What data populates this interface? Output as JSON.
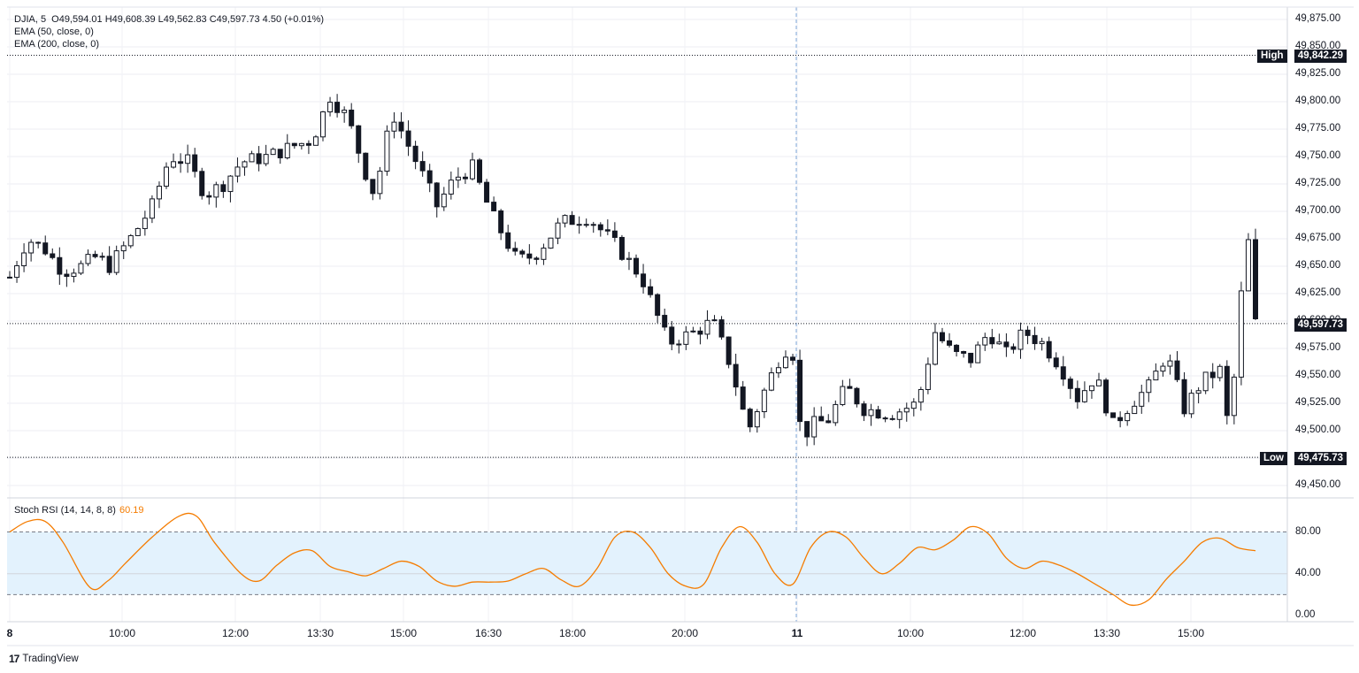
{
  "legend": {
    "symbol": "DJIA, 5",
    "ohlc": "O49,594.01 H49,608.39 L49,562.83 C49,597.73 4.50 (+0.01%)",
    "ema50": "EMA (50, close, 0)",
    "ema200": "EMA (200, close, 0)"
  },
  "price_axis": {
    "ticks": [
      "49,875.00",
      "49,850.00",
      "49,825.00",
      "49,800.00",
      "49,775.00",
      "49,750.00",
      "49,725.00",
      "49,700.00",
      "49,675.00",
      "49,650.00",
      "49,625.00",
      "49,600.00",
      "49,575.00",
      "49,550.00",
      "49,525.00",
      "49,500.00",
      "49,475.00",
      "49,450.00"
    ],
    "high_label": "High",
    "high_value": "49,842.29",
    "low_label": "Low",
    "low_value": "49,475.73",
    "last_value": "49,597.73"
  },
  "time_axis": {
    "labels": [
      {
        "t": "8",
        "bold": true
      },
      {
        "t": "10:00",
        "bold": false
      },
      {
        "t": "12:00",
        "bold": false
      },
      {
        "t": "13:30",
        "bold": false
      },
      {
        "t": "15:00",
        "bold": false
      },
      {
        "t": "16:30",
        "bold": false
      },
      {
        "t": "18:00",
        "bold": false
      },
      {
        "t": "20:00",
        "bold": false
      },
      {
        "t": "11",
        "bold": true
      },
      {
        "t": "10:00",
        "bold": false
      },
      {
        "t": "12:00",
        "bold": false
      },
      {
        "t": "13:30",
        "bold": false
      },
      {
        "t": "15:00",
        "bold": false
      }
    ]
  },
  "stoch_rsi": {
    "label": "Stoch RSI (14, 14, 8, 8)",
    "value": "60.19",
    "ticks": [
      "80.00",
      "40.00",
      "0.00"
    ],
    "line_color": "#f57c00",
    "band_color": "#e3f2fd"
  },
  "brand": "TradingView",
  "colors": {
    "candle": "#131722",
    "grid": "#e0e3eb",
    "stoch": "#f57c00"
  },
  "chart_data": {
    "type": "candlestick",
    "symbol": "DJIA",
    "interval": "5",
    "ylim": [
      49440,
      49885
    ],
    "high": 49842.29,
    "low": 49475.73,
    "last": 49597.73,
    "keypoints": [
      [
        0,
        49640
      ],
      [
        10,
        49675
      ],
      [
        20,
        49665
      ],
      [
        30,
        49645
      ],
      [
        40,
        49650
      ],
      [
        50,
        49660
      ],
      [
        55,
        49648
      ],
      [
        70,
        49680
      ],
      [
        80,
        49705
      ],
      [
        90,
        49750
      ],
      [
        100,
        49745
      ],
      [
        110,
        49715
      ],
      [
        120,
        49725
      ],
      [
        130,
        49745
      ],
      [
        145,
        49750
      ],
      [
        160,
        49760
      ],
      [
        170,
        49765
      ],
      [
        180,
        49805
      ],
      [
        190,
        49785
      ],
      [
        200,
        49735
      ],
      [
        205,
        49715
      ],
      [
        215,
        49790
      ],
      [
        230,
        49740
      ],
      [
        240,
        49705
      ],
      [
        250,
        49730
      ],
      [
        260,
        49740
      ],
      [
        270,
        49700
      ],
      [
        285,
        49655
      ],
      [
        295,
        49660
      ],
      [
        310,
        49690
      ],
      [
        325,
        49695
      ],
      [
        340,
        49670
      ],
      [
        355,
        49640
      ],
      [
        370,
        49580
      ],
      [
        385,
        49590
      ],
      [
        395,
        49600
      ],
      [
        405,
        49560
      ],
      [
        415,
        49500
      ],
      [
        425,
        49540
      ],
      [
        435,
        49575
      ],
      [
        440,
        49570
      ],
      [
        445,
        49490
      ],
      [
        450,
        49505
      ],
      [
        460,
        49510
      ],
      [
        470,
        49540
      ],
      [
        480,
        49520
      ],
      [
        495,
        49515
      ],
      [
        510,
        49525
      ],
      [
        520,
        49590
      ],
      [
        530,
        49570
      ],
      [
        540,
        49565
      ],
      [
        550,
        49590
      ],
      [
        560,
        49570
      ],
      [
        570,
        49590
      ],
      [
        580,
        49580
      ],
      [
        590,
        49560
      ],
      [
        600,
        49530
      ],
      [
        610,
        49550
      ],
      [
        620,
        49505
      ],
      [
        630,
        49525
      ],
      [
        640,
        49540
      ],
      [
        650,
        49570
      ],
      [
        660,
        49520
      ],
      [
        670,
        49545
      ],
      [
        680,
        49555
      ],
      [
        685,
        49500
      ],
      [
        690,
        49580
      ],
      [
        695,
        49690
      ],
      [
        700,
        49598
      ]
    ],
    "stoch_rsi_curve": [
      [
        0,
        80
      ],
      [
        10,
        90
      ],
      [
        20,
        90
      ],
      [
        30,
        70
      ],
      [
        45,
        27
      ],
      [
        55,
        33
      ],
      [
        65,
        50
      ],
      [
        80,
        75
      ],
      [
        95,
        95
      ],
      [
        105,
        95
      ],
      [
        115,
        70
      ],
      [
        130,
        40
      ],
      [
        140,
        33
      ],
      [
        150,
        48
      ],
      [
        160,
        60
      ],
      [
        170,
        62
      ],
      [
        180,
        47
      ],
      [
        190,
        42
      ],
      [
        200,
        38
      ],
      [
        210,
        45
      ],
      [
        220,
        52
      ],
      [
        230,
        47
      ],
      [
        240,
        33
      ],
      [
        250,
        28
      ],
      [
        260,
        32
      ],
      [
        270,
        32
      ],
      [
        280,
        33
      ],
      [
        290,
        40
      ],
      [
        300,
        45
      ],
      [
        310,
        34
      ],
      [
        320,
        28
      ],
      [
        330,
        45
      ],
      [
        340,
        75
      ],
      [
        350,
        80
      ],
      [
        360,
        65
      ],
      [
        370,
        40
      ],
      [
        380,
        28
      ],
      [
        390,
        30
      ],
      [
        400,
        65
      ],
      [
        410,
        85
      ],
      [
        420,
        70
      ],
      [
        430,
        40
      ],
      [
        440,
        30
      ],
      [
        450,
        65
      ],
      [
        460,
        80
      ],
      [
        470,
        75
      ],
      [
        480,
        55
      ],
      [
        490,
        40
      ],
      [
        500,
        50
      ],
      [
        510,
        65
      ],
      [
        520,
        63
      ],
      [
        530,
        72
      ],
      [
        540,
        85
      ],
      [
        550,
        78
      ],
      [
        560,
        55
      ],
      [
        570,
        45
      ],
      [
        580,
        52
      ],
      [
        590,
        48
      ],
      [
        600,
        40
      ],
      [
        610,
        30
      ],
      [
        620,
        20
      ],
      [
        630,
        10
      ],
      [
        640,
        15
      ],
      [
        650,
        35
      ],
      [
        660,
        52
      ],
      [
        670,
        70
      ],
      [
        680,
        74
      ],
      [
        690,
        65
      ],
      [
        700,
        62
      ]
    ]
  }
}
